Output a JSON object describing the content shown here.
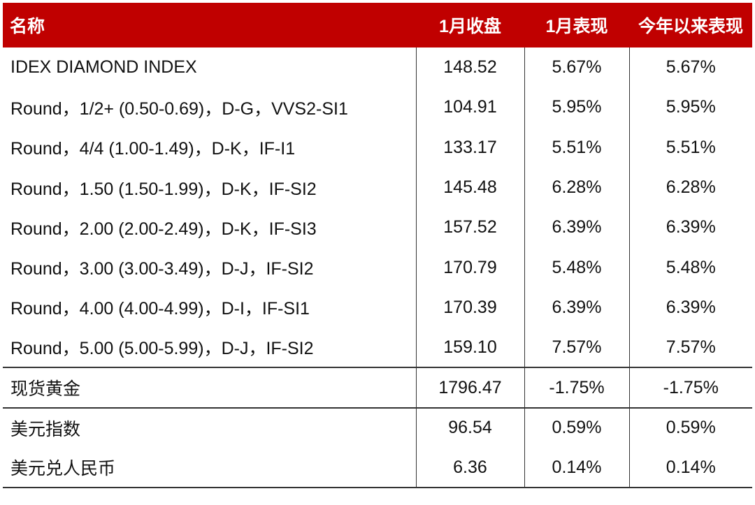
{
  "header": {
    "name": "名称",
    "close": "1月收盘",
    "month": "1月表现",
    "ytd": "今年以来表现"
  },
  "rows": [
    {
      "name": "IDEX DIAMOND INDEX",
      "close": "148.52",
      "month": "5.67%",
      "ytd": "5.67%"
    },
    {
      "name": "Round，1/2+ (0.50-0.69)，D-G，VVS2-SI1",
      "close": "104.91",
      "month": "5.95%",
      "ytd": "5.95%"
    },
    {
      "name": "Round，4/4 (1.00-1.49)，D-K，IF-I1",
      "close": "133.17",
      "month": "5.51%",
      "ytd": "5.51%"
    },
    {
      "name": "Round，1.50 (1.50-1.99)，D-K，IF-SI2",
      "close": "145.48",
      "month": "6.28%",
      "ytd": "6.28%"
    },
    {
      "name": "Round，2.00 (2.00-2.49)，D-K，IF-SI3",
      "close": "157.52",
      "month": "6.39%",
      "ytd": "6.39%"
    },
    {
      "name": "Round，3.00 (3.00-3.49)，D-J，IF-SI2",
      "close": "170.79",
      "month": "5.48%",
      "ytd": "5.48%"
    },
    {
      "name": "Round，4.00 (4.00-4.99)，D-I，IF-SI1",
      "close": "170.39",
      "month": "6.39%",
      "ytd": "6.39%"
    },
    {
      "name": "Round，5.00 (5.00-5.99)，D-J，IF-SI2",
      "close": "159.10",
      "month": "7.57%",
      "ytd": "7.57%"
    },
    {
      "name": "现货黄金",
      "close": "1796.47",
      "month": "-1.75%",
      "ytd": "-1.75%"
    },
    {
      "name": "美元指数",
      "close": "96.54",
      "month": "0.59%",
      "ytd": "0.59%"
    },
    {
      "name": "美元兑人民币",
      "close": "6.36",
      "month": "0.14%",
      "ytd": "0.14%"
    }
  ],
  "colors": {
    "header_bg": "#c00000",
    "header_text": "#ffffff"
  }
}
